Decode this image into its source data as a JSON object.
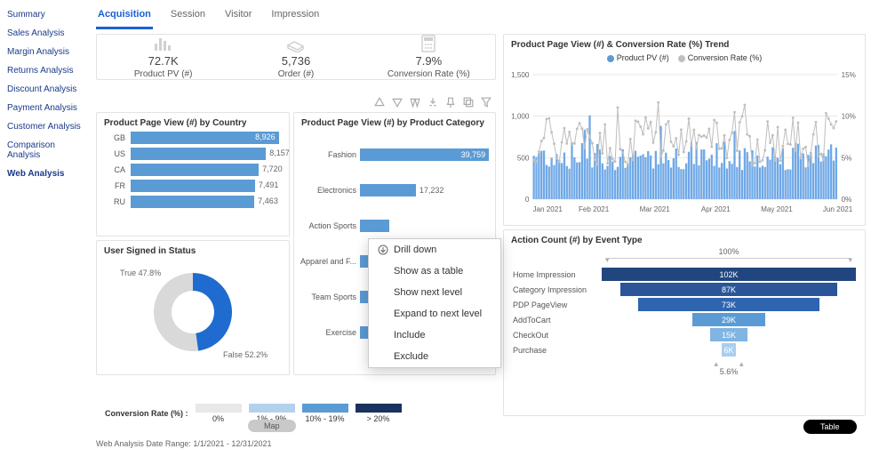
{
  "sidebar": {
    "items": [
      {
        "label": "Summary"
      },
      {
        "label": "Sales Analysis"
      },
      {
        "label": "Margin Analysis"
      },
      {
        "label": "Returns Analysis"
      },
      {
        "label": "Discount Analysis"
      },
      {
        "label": "Payment Analysis"
      },
      {
        "label": "Customer Analysis"
      },
      {
        "label": "Comparison Analysis"
      },
      {
        "label": "Web Analysis"
      }
    ],
    "active_index": 8
  },
  "tabs": {
    "items": [
      {
        "label": "Acquisition"
      },
      {
        "label": "Session"
      },
      {
        "label": "Visitor"
      },
      {
        "label": "Impression"
      }
    ],
    "active_index": 0
  },
  "kpi": {
    "items": [
      {
        "icon": "barchart-icon",
        "value": "72.7K",
        "label": "Product PV (#)"
      },
      {
        "icon": "hand-icon",
        "value": "5,736",
        "label": "Order (#)"
      },
      {
        "icon": "calculator-icon",
        "value": "7.9%",
        "label": "Conversion Rate (%)"
      }
    ]
  },
  "country_chart": {
    "title": "Product Page View (#) by Country",
    "type": "bar-horizontal",
    "bar_color": "#5b9bd5",
    "max": 9000,
    "rows": [
      {
        "label": "GB",
        "value": 8926,
        "display": "8,926",
        "inside": true
      },
      {
        "label": "US",
        "value": 8157,
        "display": "8,157",
        "inside": false
      },
      {
        "label": "CA",
        "value": 7720,
        "display": "7,720",
        "inside": false
      },
      {
        "label": "FR",
        "value": 7491,
        "display": "7,491",
        "inside": false
      },
      {
        "label": "RU",
        "value": 7463,
        "display": "7,463",
        "inside": false
      }
    ]
  },
  "category_chart": {
    "title": "Product Page View (#) by Product Category",
    "type": "bar-horizontal",
    "bar_color": "#5b9bd5",
    "max": 40000,
    "rows": [
      {
        "label": "Fashion",
        "value": 39759,
        "display": "39,759",
        "inside": true
      },
      {
        "label": "Electronics",
        "value": 17232,
        "display": "17,232",
        "inside": false
      },
      {
        "label": "Action Sports",
        "value": 9000,
        "display": "",
        "inside": false
      },
      {
        "label": "Apparel and F...",
        "value": 6000,
        "display": "",
        "inside": false
      },
      {
        "label": "Team Sports",
        "value": 4000,
        "display": "",
        "inside": false
      },
      {
        "label": "Exercise",
        "value": 2914,
        "display": "2,914",
        "inside": false
      }
    ]
  },
  "context_menu": {
    "items": [
      {
        "label": "Drill down",
        "icon": "drilldown-icon"
      },
      {
        "label": "Show as a table"
      },
      {
        "label": "Show next level"
      },
      {
        "label": "Expand to next level"
      },
      {
        "label": "Include"
      },
      {
        "label": "Exclude"
      }
    ]
  },
  "donut": {
    "title": "User Signed in Status",
    "segments": [
      {
        "label": "True 47.8%",
        "key": "True",
        "pct": 47.8,
        "color": "#1f6bd0"
      },
      {
        "label": "False 52.2%",
        "key": "False",
        "pct": 52.2,
        "color": "#d9d9d9"
      }
    ],
    "hole_pct": 60
  },
  "trend_chart": {
    "title": "Product Page View (#) & Conversion Rate (%) Trend",
    "legend": [
      {
        "label": "Product PV (#)",
        "color": "#5b9bd5",
        "shape": "dot"
      },
      {
        "label": "Conversion Rate (%)",
        "color": "#bfbfbf",
        "shape": "dot"
      }
    ],
    "y_left": {
      "ticks": [
        "1,500",
        "1,000",
        "500",
        "0"
      ],
      "min": 0,
      "max": 1500
    },
    "y_right": {
      "ticks": [
        "15%",
        "10%",
        "5%",
        "0%"
      ],
      "min": 0,
      "max": 15
    },
    "x_labels": [
      "Jan 2021",
      "Feb 2021",
      "Mar 2021",
      "Apr 2021",
      "May 2021",
      "Jun 2021"
    ],
    "bar_color": "#6fa8e6",
    "line_color": "#bfbfbf",
    "grid_color": "#e8e8e8"
  },
  "funnel": {
    "title": "Action Count (#) by Event Type",
    "top_label": "100%",
    "bottom_label": "5.6%",
    "max": 102000,
    "rows": [
      {
        "label": "Home Impression",
        "value": 102000,
        "display": "102K",
        "color": "#21467f"
      },
      {
        "label": "Category Impression",
        "value": 87000,
        "display": "87K",
        "color": "#2a5699"
      },
      {
        "label": "PDP PageView",
        "value": 73000,
        "display": "73K",
        "color": "#2f64af"
      },
      {
        "label": "AddToCart",
        "value": 29000,
        "display": "29K",
        "color": "#5b9bd5"
      },
      {
        "label": "CheckOut",
        "value": 15000,
        "display": "15K",
        "color": "#7fb4e3"
      },
      {
        "label": "Purchase",
        "value": 6000,
        "display": "6K",
        "color": "#a9cef0"
      }
    ]
  },
  "conversion_legend": {
    "title": "Conversion Rate (%) :",
    "items": [
      {
        "label": "0%",
        "color": "#e8e8e8"
      },
      {
        "label": "1% - 9%",
        "color": "#b3d1ed"
      },
      {
        "label": "10% - 19%",
        "color": "#5b9bd5"
      },
      {
        "label": "> 20%",
        "color": "#19325f"
      }
    ]
  },
  "pills": {
    "map": "Map",
    "table": "Table"
  },
  "date_range": "Web Analysis Date Range: 1/1/2021 - 12/31/2021"
}
